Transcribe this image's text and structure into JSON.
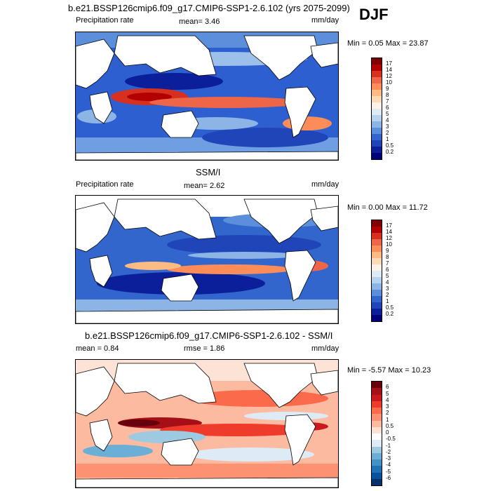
{
  "season": "DJF",
  "panels": [
    {
      "title": "b.e21.BSSP126cmip6.f09_g17.CMIP6-SSP1-2.6.102 (yrs 2075-2099)",
      "left_label": "Precipitation rate",
      "mid_label": "mean=  3.46",
      "units": "mm/day",
      "minmax": "Min =  0.05 Max =  23.87",
      "colorbar": {
        "levels": [
          "17",
          "14",
          "12",
          "10",
          "9",
          "8",
          "7",
          "6",
          "5",
          "4",
          "3",
          "2",
          "1",
          "0.5",
          "0.2"
        ],
        "colors": [
          "#7f0000",
          "#b30000",
          "#d7301f",
          "#ef6548",
          "#fc8d59",
          "#fdbb84",
          "#fdd9b5",
          "#fff1e6",
          "#deebf7",
          "#b8d3ee",
          "#8cb5e6",
          "#5b8fdb",
          "#3366cc",
          "#1f45b8",
          "#0a1f99",
          "#00007a"
        ]
      }
    },
    {
      "title": "SSM/I",
      "left_label": "Precipitation rate",
      "mid_label": "mean=  2.62",
      "units": "mm/day",
      "minmax": "Min =  0.00 Max =  11.72",
      "colorbar": {
        "levels": [
          "17",
          "14",
          "12",
          "10",
          "9",
          "8",
          "7",
          "6",
          "5",
          "4",
          "3",
          "2",
          "1",
          "0.5",
          "0.2"
        ],
        "colors": [
          "#7f0000",
          "#b30000",
          "#d7301f",
          "#ef6548",
          "#fc8d59",
          "#fdbb84",
          "#fdd9b5",
          "#fff1e6",
          "#deebf7",
          "#b8d3ee",
          "#8cb5e6",
          "#5b8fdb",
          "#3366cc",
          "#1f45b8",
          "#0a1f99",
          "#00007a"
        ]
      }
    },
    {
      "title": "b.e21.BSSP126cmip6.f09_g17.CMIP6-SSP1-2.6.102 - SSM/I",
      "left_label": "mean =   0.84",
      "mid_label": "rmse =   1.86",
      "units": "mm/day",
      "minmax": "Min =  -5.57 Max =  10.23",
      "colorbar": {
        "levels": [
          "6",
          "5",
          "4",
          "3",
          "2",
          "1",
          "0.5",
          "0",
          "-0.5",
          "-1",
          "-2",
          "-3",
          "-4",
          "-5",
          "-6"
        ],
        "colors": [
          "#67000d",
          "#a50f15",
          "#cb181d",
          "#ef3b2c",
          "#fb6a4a",
          "#fc9272",
          "#fcbba1",
          "#fee0d2",
          "#ffffff",
          "#deebf7",
          "#9ecae1",
          "#6baed6",
          "#4292c6",
          "#2171b5",
          "#08519c",
          "#08306b"
        ]
      }
    }
  ]
}
